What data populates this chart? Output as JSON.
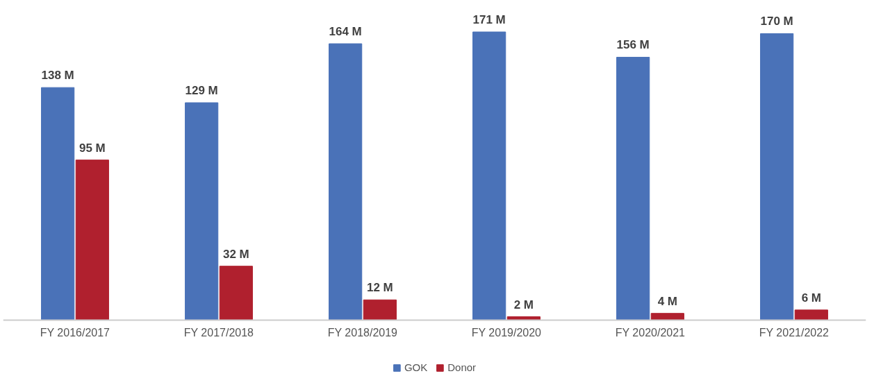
{
  "chart_data": {
    "type": "bar",
    "categories": [
      "FY 2016/2017",
      "FY 2017/2018",
      "FY 2018/2019",
      "FY 2019/2020",
      "FY 2020/2021",
      "FY 2021/2022"
    ],
    "series": [
      {
        "name": "GOK",
        "color": "#4a72b8",
        "values": [
          138,
          129,
          164,
          171,
          156,
          170
        ],
        "value_labels": [
          "138 M",
          "129 M",
          "164 M",
          "171 M",
          "156 M",
          "170 M"
        ]
      },
      {
        "name": "Donor",
        "color": "#b0202e",
        "values": [
          95,
          32,
          12,
          2,
          4,
          6
        ],
        "value_labels": [
          "95 M",
          "32 M",
          "12 M",
          "2 M",
          "4 M",
          "6 M"
        ]
      }
    ],
    "legend": "bottom"
  }
}
